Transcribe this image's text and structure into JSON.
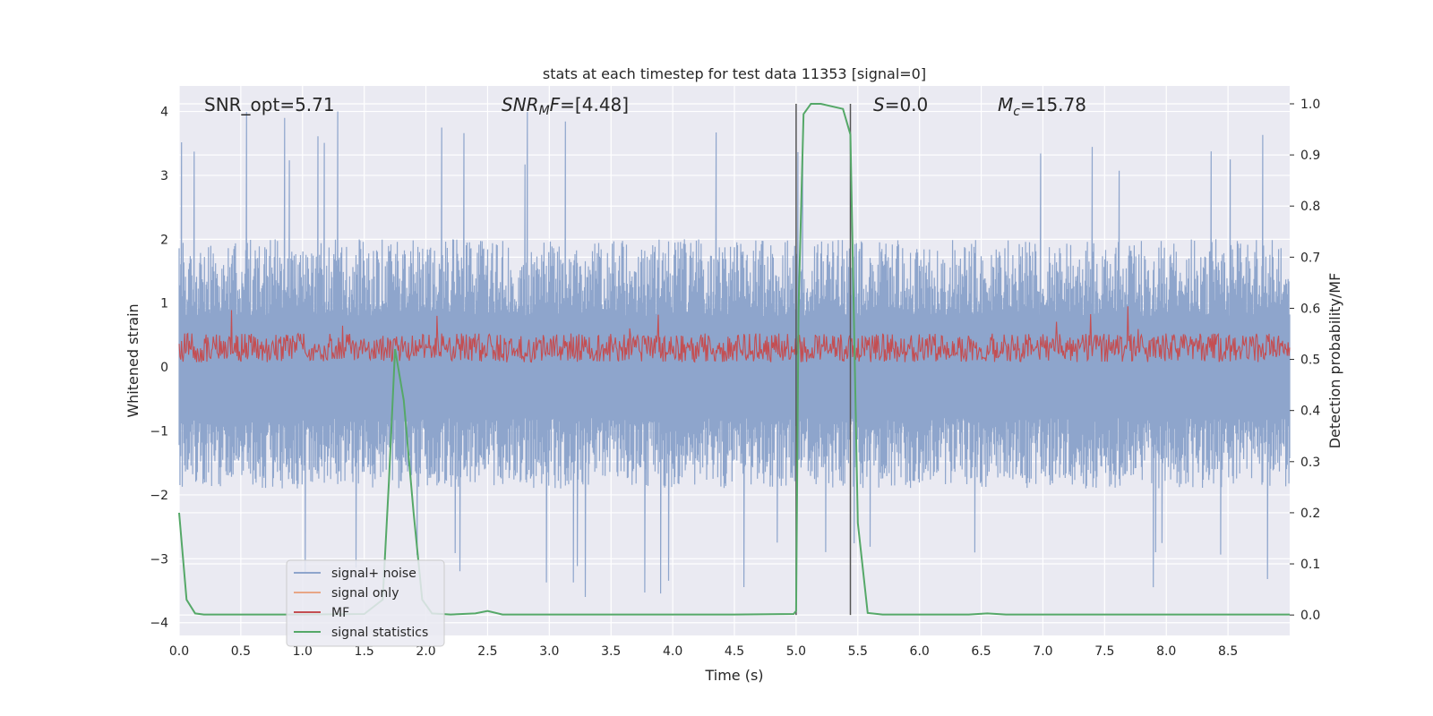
{
  "chart_data": {
    "type": "line",
    "title": "stats at each timestep for test data 11353 [signal=0]",
    "xlabel": "Time (s)",
    "ylabel": "Whitened strain",
    "ylabel_right": "Detection probability/MF",
    "xlim": [
      0,
      9.0
    ],
    "ylim": [
      -4.2,
      4.4
    ],
    "ylim_right": [
      -0.04,
      1.035
    ],
    "x_ticks": [
      "0.0",
      "0.5",
      "1.0",
      "1.5",
      "2.0",
      "2.5",
      "3.0",
      "3.5",
      "4.0",
      "4.5",
      "5.0",
      "5.5",
      "6.0",
      "6.5",
      "7.0",
      "7.5",
      "8.0",
      "8.5"
    ],
    "y_ticks": [
      "4",
      "3",
      "2",
      "1",
      "0",
      "−1",
      "−2",
      "−3",
      "−4"
    ],
    "y_ticks_right": [
      "1.0",
      "0.9",
      "0.8",
      "0.7",
      "0.6",
      "0.5",
      "0.4",
      "0.3",
      "0.2",
      "0.1",
      "0.0"
    ],
    "grid": true,
    "legend_position": "lower-left",
    "annotations": [
      {
        "id": "snr-opt",
        "text": "SNR_opt=5.71",
        "x": 0.2
      },
      {
        "id": "snr-mf",
        "text": "SNR_MF=[4.48]",
        "x": 2.6
      },
      {
        "id": "s-value",
        "text": "S=0.0",
        "x": 5.6
      },
      {
        "id": "mc-value",
        "text": "M_c=15.78",
        "x": 6.6
      }
    ],
    "vlines": [
      5.0,
      5.44
    ],
    "series": [
      {
        "name": "signal+ noise",
        "color": "#8ea5cc",
        "axis": "left",
        "style": "noise",
        "amplitude": 2.0,
        "spikes_max": 4.0,
        "spikes_min": -3.6
      },
      {
        "name": "signal only",
        "color": "#e8a686",
        "axis": "left",
        "style": "none"
      },
      {
        "name": "MF",
        "color": "#c44e52",
        "axis": "left",
        "style": "mf",
        "baseline": 0.3,
        "max": 0.95
      },
      {
        "name": "signal statistics",
        "color": "#55a868",
        "axis": "right",
        "style": "line",
        "x": [
          0.0,
          0.06,
          0.13,
          0.2,
          0.4,
          1.0,
          1.5,
          1.65,
          1.7,
          1.75,
          1.82,
          1.9,
          1.97,
          2.05,
          2.2,
          2.4,
          2.5,
          2.62,
          2.8,
          4.5,
          4.98,
          5.0,
          5.02,
          5.06,
          5.12,
          5.2,
          5.38,
          5.44,
          5.5,
          5.58,
          5.7,
          6.4,
          6.55,
          6.7,
          9.0
        ],
        "values": [
          0.2,
          0.03,
          0.003,
          0.001,
          0.001,
          0.001,
          0.002,
          0.03,
          0.26,
          0.52,
          0.42,
          0.2,
          0.03,
          0.003,
          0.001,
          0.003,
          0.008,
          0.001,
          0.001,
          0.001,
          0.002,
          0.008,
          0.6,
          0.98,
          1.0,
          1.0,
          0.99,
          0.94,
          0.18,
          0.004,
          0.001,
          0.001,
          0.003,
          0.001,
          0.001
        ]
      }
    ]
  }
}
